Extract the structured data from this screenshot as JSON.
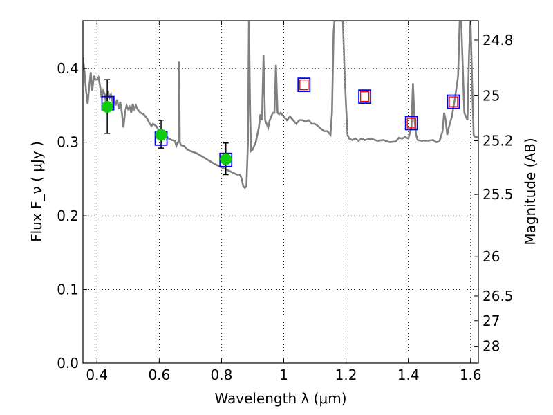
{
  "chart_data": {
    "type": "line",
    "xlabel": "Wavelength  λ (μm)",
    "ylabel": "Flux  F_ν  ( μJy )",
    "ylabel_right": "Magnitude (AB)",
    "xlim": [
      0.355,
      1.625
    ],
    "ylim": [
      0.0,
      0.465
    ],
    "grid": true,
    "x_ticks": [
      {
        "value": 0.4,
        "label": "0.4"
      },
      {
        "value": 0.6,
        "label": "0.6"
      },
      {
        "value": 0.8,
        "label": "0.8"
      },
      {
        "value": 1.0,
        "label": "1"
      },
      {
        "value": 1.2,
        "label": "1.2"
      },
      {
        "value": 1.4,
        "label": "1.4"
      },
      {
        "value": 1.6,
        "label": "1.6"
      }
    ],
    "y_ticks": [
      {
        "value": 0.0,
        "label": "0.0"
      },
      {
        "value": 0.1,
        "label": "0.1"
      },
      {
        "value": 0.2,
        "label": "0.2"
      },
      {
        "value": 0.3,
        "label": "0.3"
      },
      {
        "value": 0.4,
        "label": "0.4"
      }
    ],
    "right_ticks": [
      {
        "flux": 0.4387,
        "label": "24.8"
      },
      {
        "flux": 0.3631,
        "label": "25"
      },
      {
        "flux": 0.302,
        "label": "25.2"
      },
      {
        "flux": 0.2291,
        "label": "25.5"
      },
      {
        "flux": 0.1445,
        "label": "26"
      },
      {
        "flux": 0.0912,
        "label": "26.5"
      },
      {
        "flux": 0.0575,
        "label": "27"
      },
      {
        "flux": 0.0229,
        "label": "28"
      }
    ],
    "series": [
      {
        "kind": "model_spectrum",
        "color": "#808080",
        "points": [
          [
            0.355,
            0.415
          ],
          [
            0.36,
            0.395
          ],
          [
            0.365,
            0.37
          ],
          [
            0.37,
            0.352
          ],
          [
            0.375,
            0.375
          ],
          [
            0.38,
            0.395
          ],
          [
            0.385,
            0.37
          ],
          [
            0.39,
            0.39
          ],
          [
            0.395,
            0.385
          ],
          [
            0.4,
            0.385
          ],
          [
            0.405,
            0.388
          ],
          [
            0.41,
            0.376
          ],
          [
            0.415,
            0.36
          ],
          [
            0.42,
            0.37
          ],
          [
            0.425,
            0.365
          ],
          [
            0.43,
            0.35
          ],
          [
            0.435,
            0.37
          ],
          [
            0.44,
            0.36
          ],
          [
            0.445,
            0.365
          ],
          [
            0.45,
            0.355
          ],
          [
            0.455,
            0.36
          ],
          [
            0.46,
            0.35
          ],
          [
            0.465,
            0.358
          ],
          [
            0.47,
            0.345
          ],
          [
            0.475,
            0.355
          ],
          [
            0.48,
            0.34
          ],
          [
            0.485,
            0.32
          ],
          [
            0.49,
            0.34
          ],
          [
            0.495,
            0.35
          ],
          [
            0.5,
            0.345
          ],
          [
            0.505,
            0.348
          ],
          [
            0.51,
            0.34
          ],
          [
            0.515,
            0.352
          ],
          [
            0.52,
            0.345
          ],
          [
            0.525,
            0.35
          ],
          [
            0.53,
            0.345
          ],
          [
            0.54,
            0.34
          ],
          [
            0.55,
            0.338
          ],
          [
            0.56,
            0.333
          ],
          [
            0.57,
            0.325
          ],
          [
            0.575,
            0.322
          ],
          [
            0.58,
            0.325
          ],
          [
            0.59,
            0.322
          ],
          [
            0.6,
            0.315
          ],
          [
            0.61,
            0.312
          ],
          [
            0.62,
            0.31
          ],
          [
            0.63,
            0.305
          ],
          [
            0.64,
            0.303
          ],
          [
            0.65,
            0.302
          ],
          [
            0.655,
            0.295
          ],
          [
            0.66,
            0.3
          ],
          [
            0.662,
            0.3
          ],
          [
            0.664,
            0.41
          ],
          [
            0.666,
            0.3
          ],
          [
            0.67,
            0.296
          ],
          [
            0.68,
            0.295
          ],
          [
            0.69,
            0.29
          ],
          [
            0.7,
            0.288
          ],
          [
            0.72,
            0.285
          ],
          [
            0.74,
            0.28
          ],
          [
            0.76,
            0.275
          ],
          [
            0.78,
            0.27
          ],
          [
            0.8,
            0.266
          ],
          [
            0.82,
            0.262
          ],
          [
            0.83,
            0.26
          ],
          [
            0.84,
            0.258
          ],
          [
            0.85,
            0.256
          ],
          [
            0.86,
            0.256
          ],
          [
            0.865,
            0.25
          ],
          [
            0.87,
            0.24
          ],
          [
            0.875,
            0.238
          ],
          [
            0.88,
            0.24
          ],
          [
            0.885,
            0.3
          ],
          [
            0.888,
            0.465
          ],
          [
            0.892,
            0.34
          ],
          [
            0.895,
            0.288
          ],
          [
            0.9,
            0.29
          ],
          [
            0.91,
            0.3
          ],
          [
            0.92,
            0.32
          ],
          [
            0.925,
            0.338
          ],
          [
            0.93,
            0.33
          ],
          [
            0.935,
            0.418
          ],
          [
            0.94,
            0.33
          ],
          [
            0.95,
            0.32
          ],
          [
            0.955,
            0.33
          ],
          [
            0.96,
            0.335
          ],
          [
            0.965,
            0.34
          ],
          [
            0.97,
            0.34
          ],
          [
            0.975,
            0.405
          ],
          [
            0.98,
            0.34
          ],
          [
            0.985,
            0.338
          ],
          [
            0.99,
            0.34
          ],
          [
            1.0,
            0.335
          ],
          [
            1.01,
            0.33
          ],
          [
            1.02,
            0.335
          ],
          [
            1.03,
            0.33
          ],
          [
            1.04,
            0.325
          ],
          [
            1.05,
            0.33
          ],
          [
            1.06,
            0.33
          ],
          [
            1.07,
            0.328
          ],
          [
            1.08,
            0.33
          ],
          [
            1.09,
            0.325
          ],
          [
            1.1,
            0.325
          ],
          [
            1.11,
            0.322
          ],
          [
            1.12,
            0.318
          ],
          [
            1.13,
            0.315
          ],
          [
            1.14,
            0.315
          ],
          [
            1.15,
            0.31
          ],
          [
            1.155,
            0.34
          ],
          [
            1.16,
            0.45
          ],
          [
            1.163,
            0.465
          ],
          [
            1.19,
            0.465
          ],
          [
            1.195,
            0.4
          ],
          [
            1.2,
            0.35
          ],
          [
            1.205,
            0.31
          ],
          [
            1.21,
            0.305
          ],
          [
            1.22,
            0.303
          ],
          [
            1.23,
            0.305
          ],
          [
            1.24,
            0.302
          ],
          [
            1.25,
            0.305
          ],
          [
            1.26,
            0.303
          ],
          [
            1.28,
            0.305
          ],
          [
            1.3,
            0.302
          ],
          [
            1.32,
            0.303
          ],
          [
            1.34,
            0.3
          ],
          [
            1.36,
            0.301
          ],
          [
            1.37,
            0.306
          ],
          [
            1.38,
            0.305
          ],
          [
            1.39,
            0.307
          ],
          [
            1.4,
            0.305
          ],
          [
            1.41,
            0.32
          ],
          [
            1.415,
            0.38
          ],
          [
            1.42,
            0.33
          ],
          [
            1.425,
            0.31
          ],
          [
            1.43,
            0.303
          ],
          [
            1.44,
            0.302
          ],
          [
            1.46,
            0.302
          ],
          [
            1.48,
            0.303
          ],
          [
            1.49,
            0.3
          ],
          [
            1.5,
            0.301
          ],
          [
            1.51,
            0.315
          ],
          [
            1.515,
            0.34
          ],
          [
            1.52,
            0.33
          ],
          [
            1.525,
            0.31
          ],
          [
            1.53,
            0.32
          ],
          [
            1.54,
            0.335
          ],
          [
            1.55,
            0.36
          ],
          [
            1.56,
            0.39
          ],
          [
            1.565,
            0.465
          ],
          [
            1.57,
            0.465
          ],
          [
            1.575,
            0.4
          ],
          [
            1.58,
            0.34
          ],
          [
            1.59,
            0.33
          ],
          [
            1.595,
            0.42
          ],
          [
            1.6,
            0.465
          ],
          [
            1.605,
            0.38
          ],
          [
            1.61,
            0.31
          ],
          [
            1.615,
            0.307
          ],
          [
            1.625,
            0.307
          ]
        ]
      },
      {
        "kind": "observed",
        "marker": "circle",
        "color": "#11cc11",
        "points": [
          {
            "x": 0.433,
            "y": 0.348,
            "yerr_low": 0.312,
            "yerr_high": 0.385
          },
          {
            "x": 0.606,
            "y": 0.31,
            "yerr_low": 0.292,
            "yerr_high": 0.33
          },
          {
            "x": 0.814,
            "y": 0.277,
            "yerr_low": 0.256,
            "yerr_high": 0.299
          }
        ]
      },
      {
        "kind": "synthetic",
        "marker": "square",
        "color": "#0000ff",
        "points": [
          {
            "x": 0.435,
            "y": 0.353
          },
          {
            "x": 0.606,
            "y": 0.305
          },
          {
            "x": 0.814,
            "y": 0.276
          },
          {
            "x": 1.065,
            "y": 0.378
          },
          {
            "x": 1.26,
            "y": 0.362
          },
          {
            "x": 1.41,
            "y": 0.326
          },
          {
            "x": 1.545,
            "y": 0.355
          }
        ]
      },
      {
        "kind": "synthetic_inner",
        "marker": "square",
        "color": "#ff0000",
        "points": [
          {
            "x": 1.065,
            "y": 0.378
          },
          {
            "x": 1.26,
            "y": 0.362
          },
          {
            "x": 1.41,
            "y": 0.326
          },
          {
            "x": 1.545,
            "y": 0.355
          }
        ]
      }
    ]
  }
}
